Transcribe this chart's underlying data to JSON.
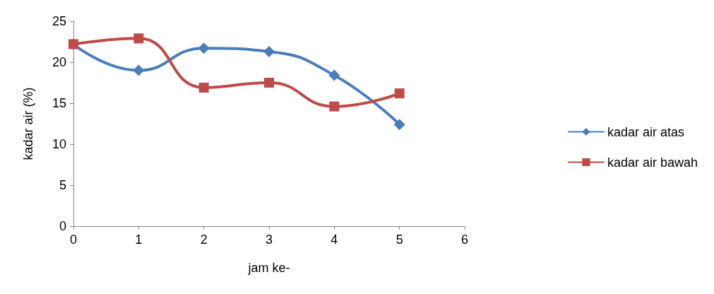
{
  "chart_data": {
    "type": "line",
    "xlabel": "jam ke-",
    "ylabel": "kadar air (%)",
    "x": [
      0,
      1,
      2,
      3,
      4,
      5
    ],
    "series": [
      {
        "name": "kadar air atas",
        "color": "#4a7ebb",
        "marker": "diamond",
        "values": [
          22.2,
          19.0,
          21.7,
          21.3,
          18.4,
          12.4
        ]
      },
      {
        "name": "kadar air bawah",
        "color": "#be4b48",
        "marker": "square",
        "values": [
          22.2,
          22.9,
          16.9,
          17.5,
          14.6,
          16.2
        ]
      }
    ],
    "xlim": [
      0,
      6
    ],
    "xticks": [
      0,
      1,
      2,
      3,
      4,
      5,
      6
    ],
    "ylim": [
      0,
      25
    ],
    "yticks": [
      0,
      5,
      10,
      15,
      20,
      25
    ],
    "grid": false,
    "legend": "right"
  }
}
